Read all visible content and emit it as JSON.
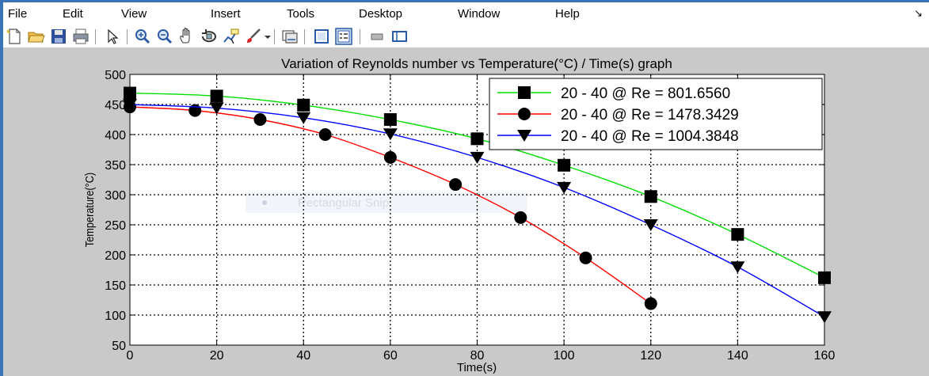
{
  "menu": {
    "items": [
      "File",
      "Edit",
      "View",
      "Insert",
      "Tools",
      "Desktop",
      "Window",
      "Help"
    ],
    "overflow": "↘"
  },
  "toolbar": {
    "icons": [
      "new-figure-icon",
      "open-file-icon",
      "save-icon",
      "print-icon",
      "select-arrow-icon",
      "zoom-in-icon",
      "zoom-out-icon",
      "pan-hand-icon",
      "rotate-3d-icon",
      "data-cursor-icon",
      "brush-icon",
      "brush-dropdown-icon",
      "link-plot-icon",
      "colorbar-icon",
      "legend-icon",
      "hide-plot-tools-icon",
      "show-plot-tools-icon"
    ]
  },
  "watermark": {
    "text": "Rectangular Snip"
  },
  "chart_data": {
    "type": "line",
    "title": "Variation of Reynolds number vs Temperature(°C) / Time(s) graph",
    "xlabel": "Time(s)",
    "ylabel": "Temperature(°C)",
    "xlim": [
      0,
      160
    ],
    "ylim": [
      50,
      500
    ],
    "xticks": [
      0,
      20,
      40,
      60,
      80,
      100,
      120,
      140,
      160
    ],
    "yticks": [
      50,
      100,
      150,
      200,
      250,
      300,
      350,
      400,
      450,
      500
    ],
    "grid": true,
    "legend_position": "top-right",
    "series": [
      {
        "name": "20 - 40 @ Re = 801.6560",
        "color": "#00e000",
        "marker": "square",
        "x": [
          0,
          20,
          40,
          60,
          80,
          100,
          120,
          140,
          160
        ],
        "y": [
          469,
          464,
          449,
          425,
          393,
          349,
          297,
          234,
          162
        ]
      },
      {
        "name": "20 - 40 @ Re = 1478.3429",
        "color": "#ff0000",
        "marker": "circle",
        "x": [
          0,
          15,
          30,
          45,
          60,
          75,
          90,
          105,
          120
        ],
        "y": [
          446,
          440,
          425,
          400,
          362,
          317,
          262,
          195,
          119
        ]
      },
      {
        "name": "20 - 40 @ Re = 1004.3848",
        "color": "#0000ff",
        "marker": "triangle-down",
        "x": [
          0,
          20,
          40,
          60,
          80,
          100,
          120,
          140,
          160
        ],
        "y": [
          450,
          444,
          428,
          401,
          362,
          312,
          250,
          180,
          97
        ]
      }
    ]
  }
}
